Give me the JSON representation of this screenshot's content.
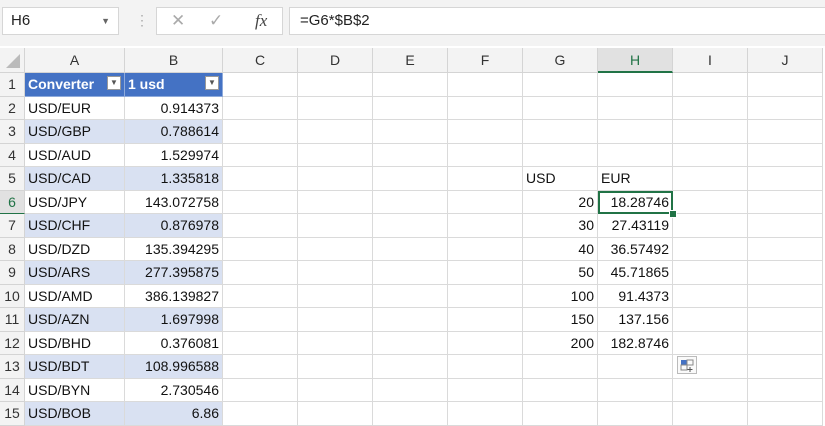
{
  "name_box": "H6",
  "formula": "=G6*$B$2",
  "columns": [
    "A",
    "B",
    "C",
    "D",
    "E",
    "F",
    "G",
    "H",
    "I",
    "J"
  ],
  "selected_column": "H",
  "selected_row": 6,
  "active_cell": "H6",
  "rows": [
    {
      "n": "1",
      "A": "Converter",
      "B": "1 usd"
    },
    {
      "n": "2",
      "A": "USD/EUR",
      "B": "0.914373"
    },
    {
      "n": "3",
      "A": "USD/GBP",
      "B": "0.788614"
    },
    {
      "n": "4",
      "A": "USD/AUD",
      "B": "1.529974"
    },
    {
      "n": "5",
      "A": "USD/CAD",
      "B": "1.335818",
      "G": "USD",
      "H": "EUR"
    },
    {
      "n": "6",
      "A": "USD/JPY",
      "B": "143.072758",
      "G": "20",
      "H": "18.28746"
    },
    {
      "n": "7",
      "A": "USD/CHF",
      "B": "0.876978",
      "G": "30",
      "H": "27.43119"
    },
    {
      "n": "8",
      "A": "USD/DZD",
      "B": "135.394295",
      "G": "40",
      "H": "36.57492"
    },
    {
      "n": "9",
      "A": "USD/ARS",
      "B": "277.395875",
      "G": "50",
      "H": "45.71865"
    },
    {
      "n": "10",
      "A": "USD/AMD",
      "B": "386.139827",
      "G": "100",
      "H": "91.4373"
    },
    {
      "n": "11",
      "A": "USD/AZN",
      "B": "1.697998",
      "G": "150",
      "H": "137.156"
    },
    {
      "n": "12",
      "A": "USD/BHD",
      "B": "0.376081",
      "G": "200",
      "H": "182.8746"
    },
    {
      "n": "13",
      "A": "USD/BDT",
      "B": "108.996588"
    },
    {
      "n": "14",
      "A": "USD/BYN",
      "B": "2.730546"
    },
    {
      "n": "15",
      "A": "USD/BOB",
      "B": "6.86"
    }
  ],
  "colors": {
    "table_header": "#4472c4",
    "band": "#d9e1f2",
    "selection": "#217346"
  },
  "icons": {
    "cancel": "close-icon",
    "enter": "check-icon",
    "function": "fx-icon",
    "quick_analysis": "quick-analysis-icon"
  }
}
